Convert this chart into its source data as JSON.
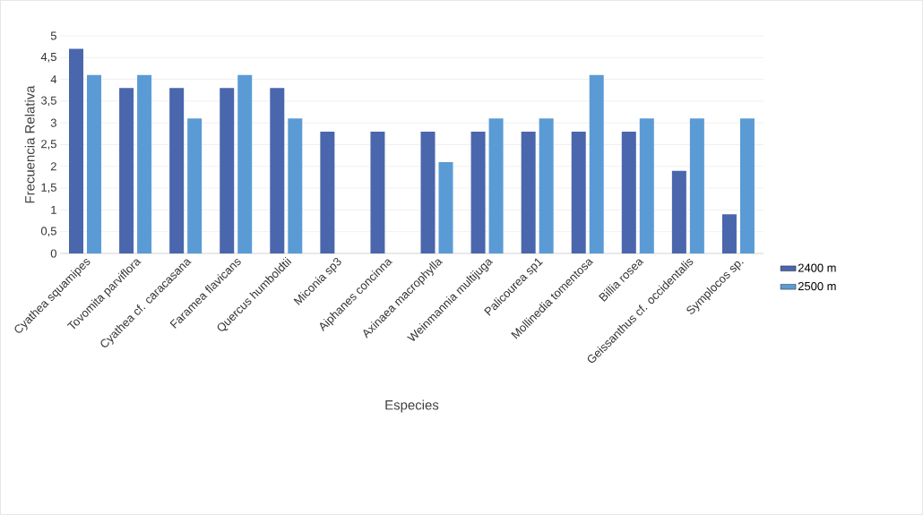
{
  "chart_data": {
    "type": "bar",
    "xlabel": "Especies",
    "ylabel": "Frecuencia Relativa",
    "categories": [
      "Cyathea  squamipes",
      "Tovomita parviflora",
      "Cyathea  cf. caracasana",
      "Faramea flavicans",
      "Quercus  humboldtii",
      "Miconia sp3",
      "Aiphanes concinna",
      "Axinaea macrophylla",
      "Weinmannia  multijuga",
      "Palicourea sp1",
      "Mollinedia tomentosa",
      "Billia rosea",
      "Geissanthus cf. occidentalis",
      "Symplocos sp."
    ],
    "series": [
      {
        "name": "2400 m",
        "color": "#4a66ad",
        "values": [
          4.7,
          3.8,
          3.8,
          3.8,
          3.8,
          2.8,
          2.8,
          2.8,
          2.8,
          2.8,
          2.8,
          2.8,
          1.9,
          0.9
        ]
      },
      {
        "name": "2500 m",
        "color": "#5b9bd5",
        "values": [
          4.1,
          4.1,
          3.1,
          4.1,
          3.1,
          0,
          0,
          2.1,
          3.1,
          3.1,
          4.1,
          3.1,
          3.1,
          3.1
        ]
      }
    ],
    "ylim": [
      0,
      5
    ],
    "yticks": [
      {
        "value": 0,
        "label": "0"
      },
      {
        "value": 0.5,
        "label": "0,5"
      },
      {
        "value": 1,
        "label": "1"
      },
      {
        "value": 1.5,
        "label": "1,5"
      },
      {
        "value": 2,
        "label": "2"
      },
      {
        "value": 2.5,
        "label": "2,5"
      },
      {
        "value": 3,
        "label": "3"
      },
      {
        "value": 3.5,
        "label": "3,5"
      },
      {
        "value": 4,
        "label": "4"
      },
      {
        "value": 4.5,
        "label": "4,5"
      },
      {
        "value": 5,
        "label": "5"
      }
    ],
    "grid": "y",
    "legend": "right"
  }
}
